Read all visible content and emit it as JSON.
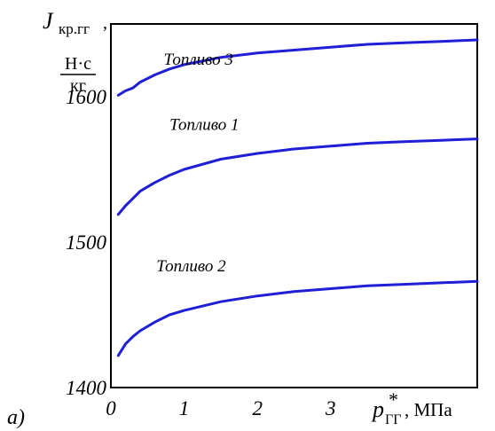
{
  "panel_label": "a)",
  "ylabel": {
    "symbol": "J",
    "subscript": "кр.гг",
    "comma": ",",
    "unit_num": "Н·с",
    "unit_den": "кг"
  },
  "xlabel": {
    "symbol": "p",
    "sup": "*",
    "subscript": "ГГ",
    "unit": ", МПа"
  },
  "chart_data": {
    "type": "line",
    "xlim": [
      0,
      5
    ],
    "ylim": [
      1400,
      1650
    ],
    "xticks": [
      {
        "value": 0,
        "label": "0"
      },
      {
        "value": 1,
        "label": "1"
      },
      {
        "value": 2,
        "label": "2"
      },
      {
        "value": 3,
        "label": "3"
      }
    ],
    "yticks": [
      {
        "value": 1400,
        "label": "1400"
      },
      {
        "value": 1500,
        "label": "1500"
      },
      {
        "value": 1600,
        "label": "1600"
      }
    ],
    "grid": false,
    "line_color": "#1f1fd6",
    "series": [
      {
        "name": "Топливо 3",
        "label_x": 0.72,
        "label_y": 1622,
        "x": [
          0.1,
          0.2,
          0.3,
          0.4,
          0.6,
          0.8,
          1.0,
          1.5,
          2.0,
          2.5,
          3.0,
          3.5,
          4.0,
          4.5,
          5.0
        ],
        "y": [
          1601,
          1604,
          1606,
          1610,
          1615,
          1619,
          1622,
          1627,
          1630,
          1632,
          1634,
          1636,
          1637,
          1638,
          1639
        ]
      },
      {
        "name": "Топливо 1",
        "label_x": 0.8,
        "label_y": 1577,
        "x": [
          0.1,
          0.2,
          0.3,
          0.4,
          0.6,
          0.8,
          1.0,
          1.5,
          2.0,
          2.5,
          3.0,
          3.5,
          4.0,
          4.5,
          5.0
        ],
        "y": [
          1519,
          1525,
          1530,
          1535,
          1541,
          1546,
          1550,
          1557,
          1561,
          1564,
          1566,
          1568,
          1569,
          1570,
          1571
        ]
      },
      {
        "name": "Топливо 2",
        "label_x": 0.62,
        "label_y": 1480,
        "x": [
          0.1,
          0.2,
          0.3,
          0.4,
          0.6,
          0.8,
          1.0,
          1.5,
          2.0,
          2.5,
          3.0,
          3.5,
          4.0,
          4.5,
          5.0
        ],
        "y": [
          1422,
          1430,
          1435,
          1439,
          1445,
          1450,
          1453,
          1459,
          1463,
          1466,
          1468,
          1470,
          1471,
          1472,
          1473
        ]
      }
    ]
  }
}
